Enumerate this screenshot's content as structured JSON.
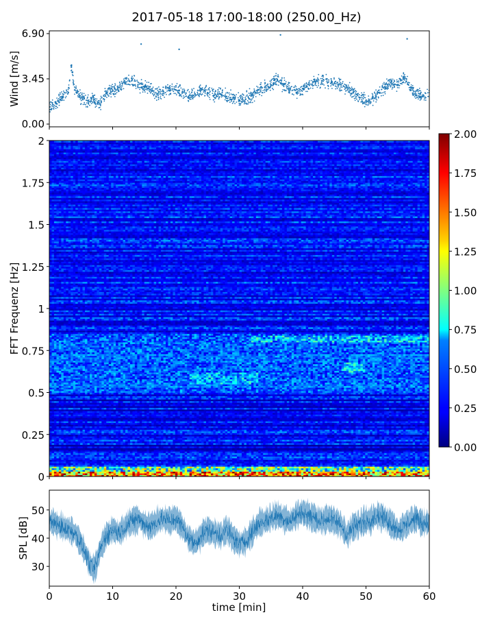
{
  "title": "2017-05-18 17:00-18:00 (250.00_Hz)",
  "chart_data": [
    {
      "type": "scatter",
      "panel": "wind",
      "ylabel": "Wind [m/s]",
      "xlabel": "",
      "xlim": [
        0,
        60
      ],
      "ylim": [
        0,
        6.9
      ],
      "yticks": [
        0.0,
        3.45,
        6.9
      ],
      "ytick_labels": [
        "0.00",
        "3.45",
        "6.90"
      ],
      "color": "#1f77b4",
      "grid": false,
      "points": [
        [
          0.0,
          1.3
        ],
        [
          1.0,
          1.6
        ],
        [
          2.0,
          2.1
        ],
        [
          3.0,
          2.4
        ],
        [
          3.5,
          4.5
        ],
        [
          4.0,
          2.6
        ],
        [
          5.0,
          2.0
        ],
        [
          6.0,
          1.8
        ],
        [
          7.0,
          1.9
        ],
        [
          8.0,
          1.5
        ],
        [
          9.0,
          2.4
        ],
        [
          10.0,
          2.5
        ],
        [
          11.0,
          2.8
        ],
        [
          12.0,
          3.2
        ],
        [
          13.0,
          3.3
        ],
        [
          14.0,
          3.0
        ],
        [
          14.5,
          6.1
        ],
        [
          15.0,
          2.8
        ],
        [
          16.0,
          2.6
        ],
        [
          17.0,
          2.3
        ],
        [
          18.0,
          2.5
        ],
        [
          19.0,
          2.7
        ],
        [
          20.0,
          2.6
        ],
        [
          20.5,
          5.7
        ],
        [
          21.0,
          2.4
        ],
        [
          22.0,
          2.1
        ],
        [
          23.0,
          2.3
        ],
        [
          24.0,
          2.6
        ],
        [
          25.0,
          2.4
        ],
        [
          26.0,
          2.2
        ],
        [
          27.0,
          2.3
        ],
        [
          28.0,
          2.1
        ],
        [
          29.0,
          2.0
        ],
        [
          30.0,
          1.8
        ],
        [
          31.0,
          1.9
        ],
        [
          32.0,
          2.2
        ],
        [
          33.0,
          2.6
        ],
        [
          34.0,
          2.8
        ],
        [
          35.0,
          3.0
        ],
        [
          36.0,
          3.4
        ],
        [
          36.5,
          6.8
        ],
        [
          37.0,
          3.0
        ],
        [
          38.0,
          2.6
        ],
        [
          39.0,
          2.4
        ],
        [
          40.0,
          2.7
        ],
        [
          41.0,
          3.0
        ],
        [
          42.0,
          3.2
        ],
        [
          43.0,
          3.3
        ],
        [
          44.0,
          3.2
        ],
        [
          45.0,
          3.1
        ],
        [
          46.0,
          3.0
        ],
        [
          47.0,
          2.8
        ],
        [
          48.0,
          2.4
        ],
        [
          49.0,
          2.0
        ],
        [
          50.0,
          1.8
        ],
        [
          51.0,
          2.0
        ],
        [
          52.0,
          2.4
        ],
        [
          53.0,
          2.8
        ],
        [
          54.0,
          3.2
        ],
        [
          55.0,
          3.0
        ],
        [
          56.0,
          3.6
        ],
        [
          56.5,
          6.5
        ],
        [
          57.0,
          2.8
        ],
        [
          58.0,
          2.2
        ],
        [
          59.0,
          2.1
        ],
        [
          60.0,
          2.4
        ]
      ]
    },
    {
      "type": "heatmap",
      "panel": "spectrogram",
      "ylabel": "FFT Frequenz [Hz]",
      "xlabel": "",
      "xlim": [
        0,
        60
      ],
      "ylim": [
        0,
        2
      ],
      "yticks": [
        0,
        0.25,
        0.5,
        0.75,
        1,
        1.25,
        1.5,
        1.75,
        2
      ],
      "ytick_labels": [
        "0",
        "0.25",
        "0.5",
        "0.75",
        "1",
        "1.25",
        "1.5",
        "1.75",
        "2"
      ],
      "colormap": "jet",
      "colorbar": {
        "range": [
          0,
          2
        ],
        "ticks": [
          0.0,
          0.25,
          0.5,
          0.75,
          1.0,
          1.25,
          1.5,
          1.75,
          2.0
        ],
        "tick_labels": [
          "0.00",
          "0.25",
          "0.50",
          "0.75",
          "1.00",
          "1.25",
          "1.50",
          "1.75",
          "2.00"
        ]
      },
      "features": [
        {
          "freq_range": [
            0.0,
            0.06
          ],
          "time_range": [
            0,
            60
          ],
          "level": 1.2
        },
        {
          "freq_range": [
            0.5,
            0.85
          ],
          "time_range": [
            0,
            60
          ],
          "level": 0.55
        },
        {
          "freq_range": [
            0.8,
            0.84
          ],
          "time_range": [
            32,
            60
          ],
          "level": 0.8
        },
        {
          "freq_range": [
            0.55,
            0.62
          ],
          "time_range": [
            22,
            33
          ],
          "level": 0.75
        },
        {
          "freq_range": [
            0.62,
            0.68
          ],
          "time_range": [
            46,
            50
          ],
          "level": 0.8
        },
        {
          "freq_range": [
            1.0,
            2.0
          ],
          "time_range": [
            0,
            60
          ],
          "level": 0.2
        }
      ]
    },
    {
      "type": "area",
      "panel": "spl",
      "ylabel": "SPL [dB]",
      "xlabel": "time [min]",
      "xlim": [
        0,
        60
      ],
      "ylim": [
        23,
        57
      ],
      "xticks": [
        0,
        10,
        20,
        30,
        40,
        50,
        60
      ],
      "xtick_labels": [
        "0",
        "10",
        "20",
        "30",
        "40",
        "50",
        "60"
      ],
      "yticks": [
        30,
        40,
        50
      ],
      "ytick_labels": [
        "30",
        "40",
        "50"
      ],
      "color": "#1f77b4",
      "grid": false,
      "x": [
        0,
        1,
        2,
        3,
        4,
        5,
        6,
        6.5,
        7,
        7.5,
        8,
        9,
        10,
        11,
        12,
        13,
        14,
        15,
        16,
        17,
        18,
        19,
        20,
        21,
        22,
        23,
        24,
        25,
        26,
        27,
        28,
        29,
        30,
        31,
        32,
        33,
        34,
        35,
        36,
        37,
        38,
        39,
        40,
        41,
        42,
        43,
        44,
        45,
        46,
        47,
        48,
        49,
        50,
        51,
        52,
        53,
        54,
        55,
        56,
        57,
        58,
        59,
        60
      ],
      "center": [
        46,
        45,
        44,
        43,
        42,
        38,
        33,
        30,
        29,
        31,
        36,
        41,
        43,
        42,
        44,
        46,
        47,
        45,
        44,
        46,
        47,
        46,
        47,
        44,
        40,
        38,
        41,
        43,
        42,
        41,
        43,
        40,
        38,
        39,
        42,
        45,
        46,
        47,
        48,
        47,
        46,
        48,
        49,
        48,
        47,
        46,
        47,
        46,
        45,
        41,
        44,
        45,
        46,
        47,
        48,
        47,
        45,
        43,
        44,
        46,
        47,
        45,
        46
      ],
      "spread": 4
    }
  ]
}
